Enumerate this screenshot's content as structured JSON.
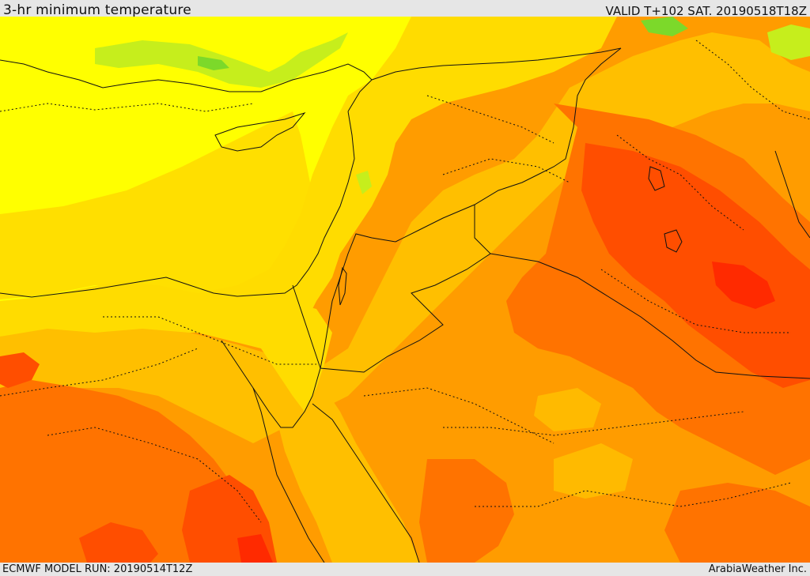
{
  "header": {
    "title": "3-hr minimum temperature",
    "valid": "VALID T+102 SAT. 20190518T18Z"
  },
  "footer": {
    "model_run": "ECMWF MODEL RUN: 20190514T12Z",
    "credit": "ArabiaWeather Inc."
  },
  "map": {
    "colors": {
      "green": "#7cd92a",
      "light_green": "#c6ee1c",
      "yellow": "#ffff00",
      "yellow_orange": "#ffdc00",
      "light_orange": "#ffbf00",
      "orange": "#ff9c00",
      "dark_orange": "#ff7300",
      "red_orange": "#ff4e00",
      "red": "#ff2a00",
      "borders": "#111111"
    }
  }
}
